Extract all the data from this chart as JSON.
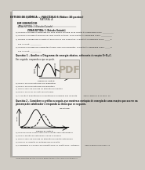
{
  "bg_color": "#d0ccc5",
  "page_bg": "#f5f3f0",
  "shadow_color": "#b0aca5",
  "title": "ESTUDO DE QUÍMICA  –  FASCÍCULO 5 (Valor: 10 pontos)",
  "subtitle_line": "MATÉRIA: A",
  "section": "EM EXERCÍCIO",
  "section2": "ZONA RETIDA: 1 (Estudo Guiado)",
  "body_lines": [
    "a) Quando a energia é absorvida em uma reação química, essa reação é classificada como: ___________",
    "b) Quando a energia é liberada em uma reação química, essa reação é classificada como: ___________",
    "c) Quando a energia dos produtos é maior que a dos reagentes, a reação é classificada como: _____ e",
    "    sua ΔH será: ___________",
    "d) Quando a energia dos reagentes é maior que a dos produtos, a reação é classificada como: _____ e",
    "    sua ΔH será: ___________"
  ],
  "q1_label": "Questão 1 – Analise o Diagrama de energia abaixo, referente à reação E+D→C.",
  "q1_sub": "Em seguida, responda o que se pede.",
  "q1_subs": [
    "a) Qual o valor da entalpia dos reagentes?",
    "b) Qual o valor da entalpia dos produtos?",
    "c) Qual o valor da energia de ativação da reação?",
    "d) Qual o valor ΔH variação da entalpia?",
    "e) A reação é endotérmica ou exotérmica? Explique sua resposta.          Veja a figura 5 a do mod. 10"
  ],
  "q2_label": "Questão 2 – Considere o gráfico a seguir, que mostra a variação de energia de uma reação que ocorre na",
  "q2_sub": "presença de catalisador e responda os itens que se seguem.",
  "q2_subs": [
    "a) Qual das duas curvas refere-se à reação sem catalisador?",
    "b) Qual a função do catalisador nessa processo?",
    "c) Qual o valor da energia de ativação da reação catalisada?",
    "d) Calcule a variação de entalpia dessa reação.",
    "e) Classifique o processo em endotérmico ou exotérmico. Justifique.         Veja a figura 5 do mod. 11"
  ],
  "footer": "Acesse a Biblioteca de Artes Visuais em www.portaldoaluno.tv ou pelo app Portaldoaluno",
  "pdf_label": "PDF"
}
